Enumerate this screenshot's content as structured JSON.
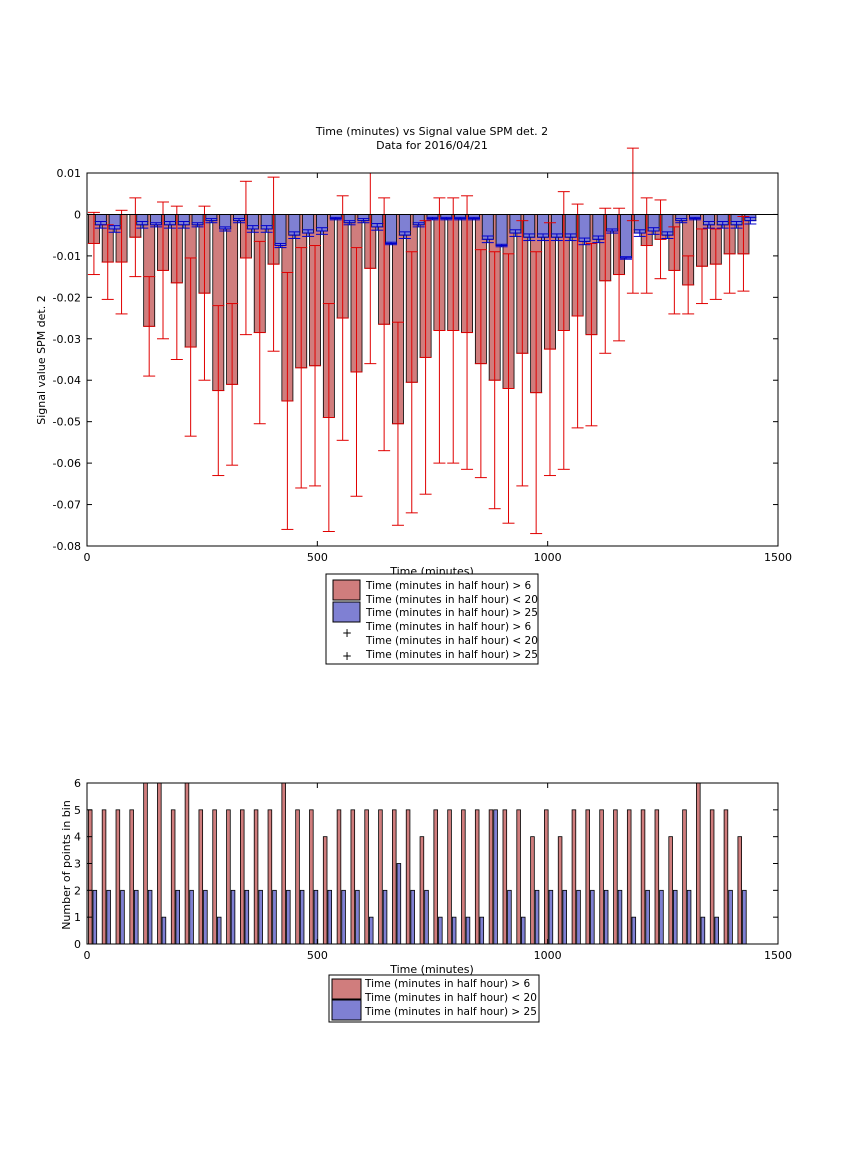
{
  "colors": {
    "red_fill": "#d07d7d",
    "blue_fill": "#7f80d3",
    "red_err": "#e00000",
    "blue_err": "#0000cc"
  },
  "chart_data": [
    {
      "type": "bar",
      "title": "Time (minutes) vs Signal value SPM det. 2",
      "subtitle": "Data for 2016/04/21",
      "xlabel": "Time (minutes)",
      "ylabel": "Signal value SPM det. 2",
      "xlim": [
        0,
        1500
      ],
      "ylim": [
        -0.08,
        0.01
      ],
      "xticks": [
        "0",
        "500",
        "1000",
        "1500"
      ],
      "yticks": [
        "0.01",
        "0",
        "-0.01",
        "-0.02",
        "-0.03",
        "-0.04",
        "-0.05",
        "-0.06",
        "-0.07",
        "-0.08"
      ],
      "legend_position": "below",
      "legend": [
        "Time (minutes in half hour) > 6\nTime (minutes in half hour) < 20",
        "Time (minutes in half hour) > 25",
        "Time (minutes in half hour) > 6\nTime (minutes in half hour) < 20",
        "Time (minutes in half hour) > 25"
      ],
      "bar_width_minutes": 24,
      "x_red": [
        15,
        45,
        75,
        105,
        135,
        165,
        195,
        225,
        255,
        285,
        315,
        345,
        375,
        405,
        435,
        465,
        495,
        525,
        555,
        585,
        615,
        645,
        675,
        705,
        735,
        765,
        795,
        825,
        855,
        885,
        915,
        945,
        975,
        1005,
        1035,
        1065,
        1095,
        1125,
        1155,
        1185,
        1215,
        1245,
        1275,
        1305,
        1335,
        1365,
        1395,
        1425
      ],
      "red_values": [
        -0.007,
        -0.0115,
        -0.0115,
        -0.0055,
        -0.027,
        -0.0135,
        -0.0165,
        -0.032,
        -0.019,
        -0.0425,
        -0.041,
        -0.0105,
        -0.0285,
        -0.012,
        -0.045,
        -0.037,
        -0.0365,
        -0.049,
        -0.025,
        -0.038,
        -0.013,
        -0.0265,
        -0.0505,
        -0.0405,
        -0.0345,
        -0.028,
        -0.028,
        -0.0285,
        -0.036,
        -0.04,
        -0.042,
        -0.0335,
        -0.043,
        -0.0325,
        -0.028,
        -0.0245,
        -0.029,
        -0.016,
        -0.0145,
        -0.0015,
        -0.0075,
        -0.006,
        -0.0135,
        -0.017,
        -0.0125,
        -0.012,
        -0.0095,
        -0.0095
      ],
      "red_err": [
        0.0075,
        0.009,
        0.0125,
        0.0095,
        0.012,
        0.0165,
        0.0185,
        0.0215,
        0.021,
        0.0205,
        0.0195,
        0.0185,
        0.022,
        0.021,
        0.031,
        0.029,
        0.029,
        0.0275,
        0.0295,
        0.03,
        0.023,
        0.0305,
        0.0245,
        0.0315,
        0.033,
        0.032,
        0.032,
        0.033,
        0.0275,
        0.031,
        0.0325,
        0.032,
        0.034,
        0.0305,
        0.0335,
        0.027,
        0.022,
        0.0175,
        0.016,
        0.0175,
        0.0115,
        0.0095,
        0.0105,
        0.007,
        0.009,
        0.0085,
        0.0095,
        0.009
      ],
      "x_blue": [
        30,
        60,
        120,
        150,
        180,
        210,
        240,
        270,
        300,
        330,
        360,
        390,
        420,
        450,
        480,
        510,
        540,
        570,
        600,
        630,
        660,
        690,
        720,
        750,
        780,
        810,
        840,
        870,
        900,
        930,
        960,
        990,
        1020,
        1050,
        1080,
        1110,
        1140,
        1170,
        1200,
        1230,
        1260,
        1290,
        1320,
        1350,
        1380,
        1410,
        1440
      ],
      "blue_values": [
        -0.0025,
        -0.0035,
        -0.0025,
        -0.0025,
        -0.0025,
        -0.0025,
        -0.0025,
        -0.0015,
        -0.0035,
        -0.0015,
        -0.0035,
        -0.0035,
        -0.0075,
        -0.005,
        -0.0045,
        -0.004,
        -0.001,
        -0.002,
        -0.0015,
        -0.003,
        -0.007,
        -0.005,
        -0.0025,
        -0.001,
        -0.001,
        -0.001,
        -0.001,
        -0.006,
        -0.0075,
        -0.0045,
        -0.0055,
        -0.0055,
        -0.0055,
        -0.0055,
        -0.0065,
        -0.006,
        -0.004,
        -0.0105,
        -0.0045,
        -0.004,
        -0.005,
        -0.0015,
        -0.001,
        -0.0025,
        -0.0025,
        -0.0025,
        -0.0015
      ],
      "blue_err": [
        0.0008,
        0.0008,
        0.0008,
        0.0005,
        0.0008,
        0.0008,
        0.0005,
        0.0005,
        0.0005,
        0.0005,
        0.0008,
        0.0008,
        0.0005,
        0.0008,
        0.0008,
        0.0008,
        0.0003,
        0.0005,
        0.0005,
        0.0008,
        0.0003,
        0.0008,
        0.0005,
        0.0003,
        0.0003,
        0.0003,
        0.0003,
        0.0008,
        0.0003,
        0.0008,
        0.0008,
        0.0008,
        0.0008,
        0.0008,
        0.0008,
        0.0008,
        0.0005,
        0.0003,
        0.0008,
        0.0008,
        0.0008,
        0.0005,
        0.0003,
        0.0008,
        0.0008,
        0.0008,
        0.0008
      ]
    },
    {
      "type": "bar",
      "xlabel": "Time (minutes)",
      "ylabel": "Number of points in bin",
      "xlim": [
        0,
        1500
      ],
      "ylim": [
        0,
        6
      ],
      "xticks": [
        "0",
        "500",
        "1000",
        "1500"
      ],
      "yticks": [
        "0",
        "1",
        "2",
        "3",
        "4",
        "5",
        "6"
      ],
      "legend_position": "below",
      "legend": [
        "Time (minutes in half hour) > 6\nTime (minutes in half hour) < 20",
        "Time (minutes in half hour) > 25"
      ],
      "bar_width_minutes": 8,
      "x_red": [
        7,
        37,
        67,
        97,
        127,
        157,
        187,
        217,
        247,
        277,
        307,
        337,
        367,
        397,
        427,
        457,
        487,
        517,
        547,
        577,
        607,
        637,
        667,
        697,
        727,
        757,
        787,
        817,
        847,
        877,
        907,
        937,
        967,
        997,
        1027,
        1057,
        1087,
        1117,
        1147,
        1177,
        1207,
        1237,
        1267,
        1297,
        1327,
        1357,
        1387,
        1417
      ],
      "red_counts": [
        5,
        5,
        5,
        5,
        6,
        6,
        5,
        6,
        5,
        5,
        5,
        5,
        5,
        5,
        6,
        5,
        5,
        4,
        5,
        5,
        5,
        5,
        5,
        5,
        4,
        5,
        5,
        5,
        5,
        5,
        5,
        5,
        4,
        5,
        4,
        5,
        5,
        5,
        5,
        5,
        5,
        5,
        4,
        5,
        6,
        5,
        5,
        4
      ],
      "x_blue": [
        17,
        47,
        77,
        107,
        137,
        167,
        197,
        227,
        257,
        287,
        317,
        347,
        377,
        407,
        437,
        467,
        497,
        527,
        557,
        587,
        617,
        647,
        677,
        707,
        737,
        767,
        797,
        827,
        857,
        887,
        917,
        947,
        977,
        1007,
        1037,
        1067,
        1097,
        1127,
        1157,
        1187,
        1217,
        1247,
        1277,
        1307,
        1337,
        1367,
        1397,
        1427
      ],
      "blue_counts": [
        2,
        2,
        2,
        2,
        2,
        1,
        2,
        2,
        2,
        1,
        2,
        2,
        2,
        2,
        2,
        2,
        2,
        2,
        2,
        2,
        1,
        2,
        3,
        2,
        2,
        1,
        1,
        1,
        1,
        5,
        2,
        1,
        2,
        2,
        2,
        2,
        2,
        2,
        2,
        1,
        2,
        2,
        2,
        2,
        1,
        1,
        2,
        2
      ]
    }
  ]
}
